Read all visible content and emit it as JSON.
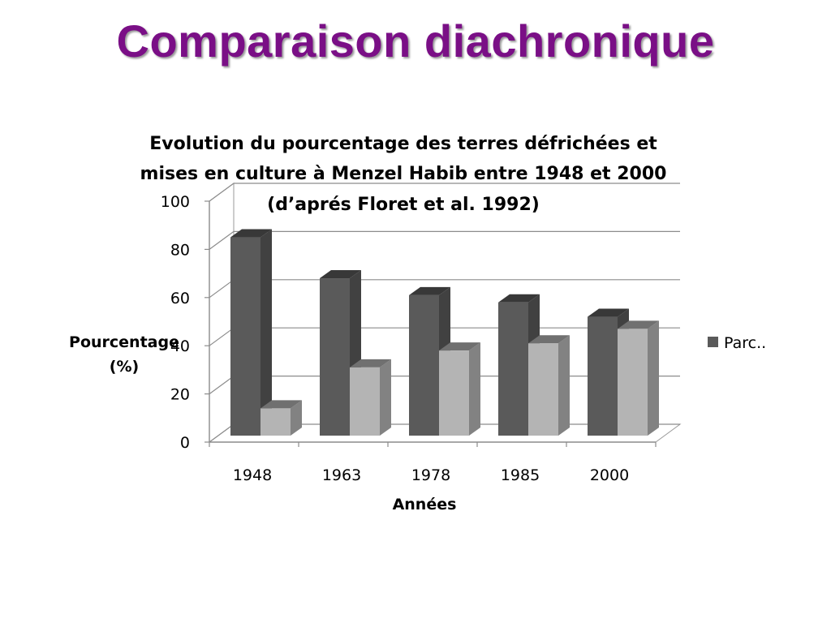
{
  "slide": {
    "title": "Comparaison diachronique"
  },
  "chart_data": {
    "type": "bar",
    "title_lines": [
      "Evolution du pourcentage des terres défrichées et",
      "mises en culture à Menzel Habib entre 1948 et 2000",
      "(d’aprés Floret et al. 1992)"
    ],
    "xlabel": "Années",
    "ylabel_lines": [
      "Pourcentage",
      "(%)"
    ],
    "categories": [
      "1948",
      "1963",
      "1978",
      "1985",
      "2000"
    ],
    "ylim": [
      0,
      100
    ],
    "yticks": [
      0,
      20,
      40,
      60,
      80,
      100
    ],
    "grid": true,
    "legend": {
      "entries": [
        "Parc.."
      ],
      "placement": "right"
    },
    "series": [
      {
        "name": "Parc..",
        "values": [
          85,
          68,
          61,
          58,
          52
        ],
        "color": "#5a5a5a"
      },
      {
        "values": [
          14,
          31,
          38,
          41,
          47
        ],
        "color": "#b4b4b4"
      }
    ]
  }
}
